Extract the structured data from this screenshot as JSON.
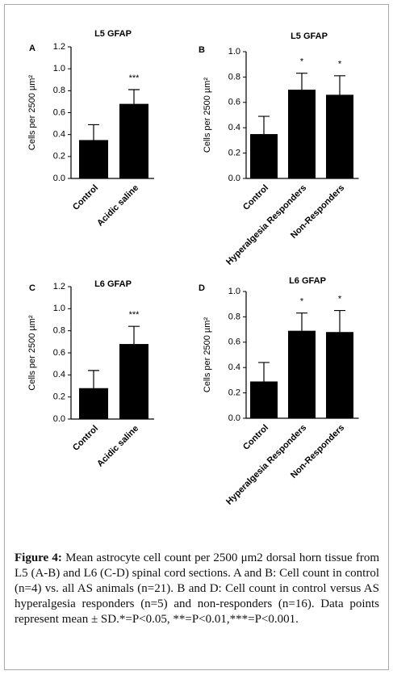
{
  "chart_data": [
    {
      "type": "bar",
      "panel": "A",
      "title": "L5 GFAP",
      "ylabel": "Cells per 2500 µm²",
      "categories": [
        "Control",
        "Acidic saline"
      ],
      "values": [
        0.35,
        0.68
      ],
      "errors": [
        0.14,
        0.13
      ],
      "annotations": [
        null,
        "***"
      ],
      "color": "#000000",
      "ylim": [
        0,
        1.2
      ],
      "yticks": [
        {
          "value": 0,
          "label": "0.0"
        },
        0.2,
        0.4,
        0.6,
        0.8,
        {
          "value": 1,
          "label": "1.0"
        },
        1.2
      ]
    },
    {
      "type": "bar",
      "panel": "B",
      "title": "L5 GFAP",
      "ylabel": "Cells per 2500 µm²",
      "categories": [
        "Control",
        "Hyperalgesia Responders",
        "Non-Responders"
      ],
      "values": [
        0.35,
        0.7,
        0.66
      ],
      "errors": [
        0.14,
        0.13,
        0.15
      ],
      "annotations": [
        null,
        "*",
        "*"
      ],
      "color": "#000000",
      "ylim": [
        0,
        1
      ],
      "yticks": [
        {
          "value": 0,
          "label": "0.0"
        },
        0.2,
        0.4,
        0.6,
        0.8,
        {
          "value": 1,
          "label": "1.0"
        }
      ]
    },
    {
      "type": "bar",
      "panel": "C",
      "title": "L6 GFAP",
      "ylabel": "Cells per 2500 µm²",
      "categories": [
        "Control",
        "Acidic saline"
      ],
      "values": [
        0.28,
        0.68
      ],
      "errors": [
        0.16,
        0.16
      ],
      "annotations": [
        null,
        "***"
      ],
      "color": "#000000",
      "ylim": [
        0,
        1.2
      ],
      "yticks": [
        {
          "value": 0,
          "label": "0.0"
        },
        0.2,
        0.4,
        0.6,
        0.8,
        {
          "value": 1,
          "label": "1.0"
        },
        1.2
      ]
    },
    {
      "type": "bar",
      "panel": "D",
      "title": "L6 GFAP",
      "ylabel": "Cells per 2500 µm²",
      "categories": [
        "Control",
        "Hyperalgesia Responders",
        "Non-Responders"
      ],
      "values": [
        0.29,
        0.69,
        0.68
      ],
      "errors": [
        0.15,
        0.14,
        0.17
      ],
      "annotations": [
        null,
        "*",
        "*"
      ],
      "color": "#000000",
      "ylim": [
        0,
        1
      ],
      "yticks": [
        {
          "value": 0,
          "label": "0.0"
        },
        0.2,
        0.4,
        0.6,
        0.8,
        {
          "value": 1,
          "label": "1.0"
        }
      ]
    }
  ],
  "caption": {
    "label": "Figure 4:",
    "text": "Mean astrocyte cell count per 2500 μm2 dorsal horn tissue from L5 (A-B) and L6 (C-D) spinal cord sections. A and B: Cell count in control (n=4) vs. all AS animals (n=21). B and D: Cell count in control versus AS hyperalgesia responders (n=5) and non-responders (n=16). Data points represent mean ± SD.*=P<0.05, **=P<0.01,***=P<0.001."
  }
}
